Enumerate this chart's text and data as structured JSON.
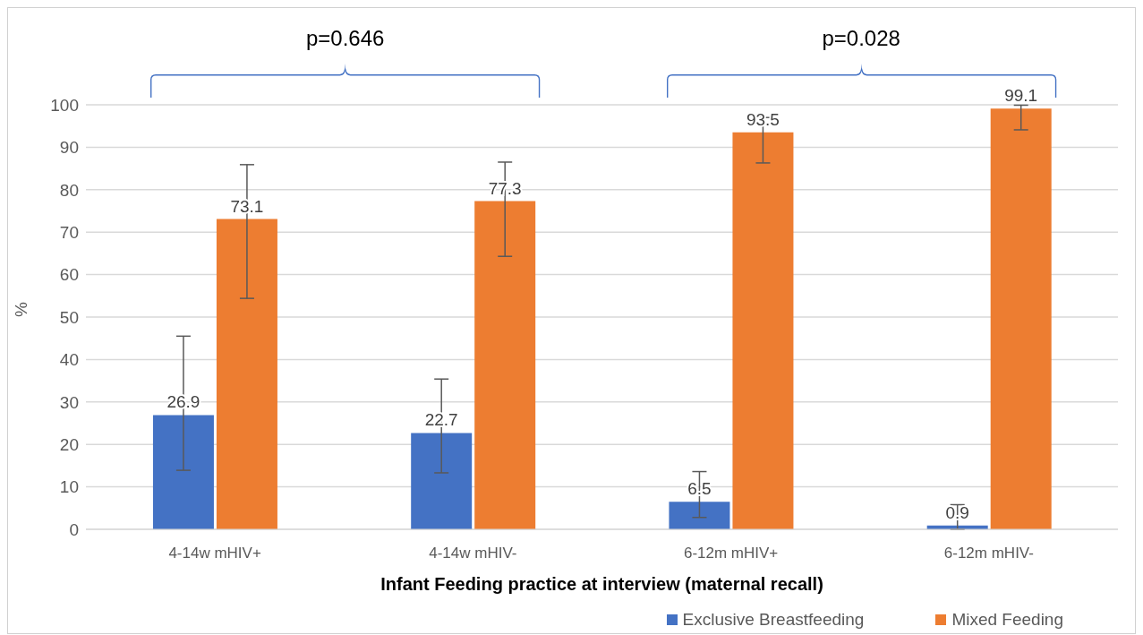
{
  "chart_data": {
    "type": "bar",
    "xlabel": "Infant Feeding practice at interview (maternal recall)",
    "ylabel": "%",
    "categories": [
      "4-14w mHIV+",
      "4-14w mHIV-",
      "6-12m mHIV+",
      "6-12m mHIV-"
    ],
    "series": [
      {
        "name": "Exclusive Breastfeeding",
        "color": "#4472c4",
        "values": [
          26.9,
          22.7,
          6.5,
          0.9
        ],
        "errors": [
          [
            13.9,
            45.5
          ],
          [
            13.3,
            35.4
          ],
          [
            2.8,
            13.6
          ],
          [
            0,
            5.8
          ]
        ]
      },
      {
        "name": "Mixed Feeding",
        "color": "#ed7d31",
        "values": [
          73.1,
          77.3,
          93.5,
          99.1
        ],
        "errors": [
          [
            54.4,
            85.9
          ],
          [
            64.3,
            86.5
          ],
          [
            86.3,
            97.0
          ],
          [
            94.1,
            99.9
          ]
        ]
      }
    ],
    "ylim": [
      0,
      100
    ],
    "yticks": [
      0,
      10,
      20,
      30,
      40,
      50,
      60,
      70,
      80,
      90,
      100
    ],
    "grid": "y",
    "legend": "bottom right",
    "data_labels": true,
    "annotations": [
      "p=0.646",
      "p=0.028"
    ]
  }
}
